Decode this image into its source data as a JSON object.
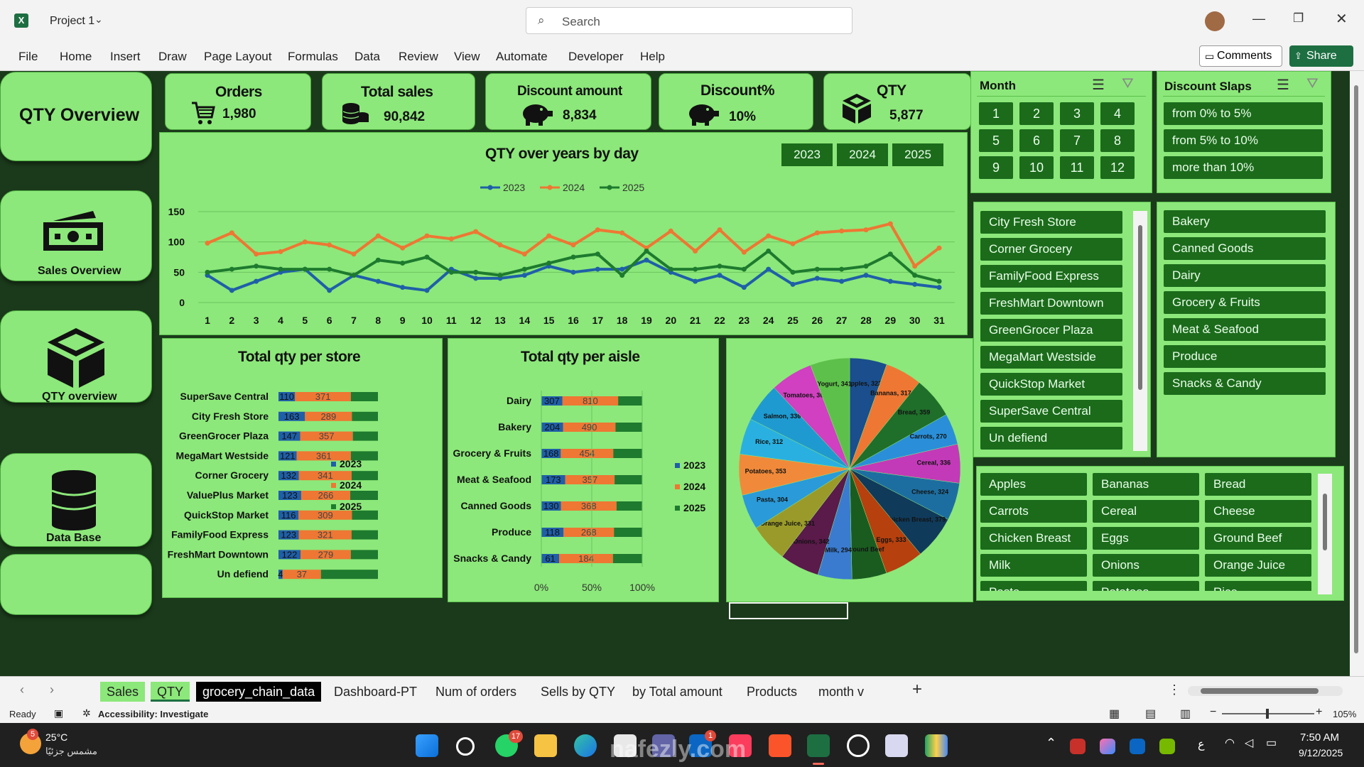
{
  "window": {
    "project_title": "Project 1",
    "search_placeholder": "Search",
    "comments_label": "Comments",
    "share_label": "Share"
  },
  "menu": [
    "File",
    "Home",
    "Insert",
    "Draw",
    "Page Layout",
    "Formulas",
    "Data",
    "Review",
    "View",
    "Automate",
    "Developer",
    "Help"
  ],
  "nav": {
    "qty_overview_title": "QTY Overview",
    "sales_overview": "Sales Overview",
    "qty_overview": "QTY overview",
    "data_base": "Data Base"
  },
  "kpis": [
    {
      "title": "Orders",
      "value": "1,980",
      "icon": "cart-icon"
    },
    {
      "title": "Total sales",
      "value": "90,842",
      "icon": "coins-icon"
    },
    {
      "title": "Discount amount",
      "value": "8,834",
      "icon": "piggy-bank-icon"
    },
    {
      "title": "Discount%",
      "value": "10%",
      "icon": "piggy-bank-icon"
    },
    {
      "title": "QTY",
      "value": "5,877",
      "icon": "box-icon"
    }
  ],
  "line_chart": {
    "title": "QTY over years by day",
    "year_buttons": [
      "2023",
      "2024",
      "2025"
    ],
    "colors": {
      "2023": "#1f5fa8",
      "2024": "#ee7733",
      "2025": "#1e7a2e"
    }
  },
  "chart_data": [
    {
      "type": "line",
      "title": "QTY over years by day",
      "x": [
        1,
        2,
        3,
        4,
        5,
        6,
        7,
        8,
        9,
        10,
        11,
        12,
        13,
        14,
        15,
        16,
        17,
        18,
        19,
        20,
        21,
        22,
        23,
        24,
        25,
        26,
        27,
        28,
        29,
        30,
        31
      ],
      "ylim": [
        0,
        150
      ],
      "yticks": [
        0,
        50,
        100,
        150
      ],
      "legend": "top",
      "series": [
        {
          "name": "2023",
          "values": [
            45,
            20,
            35,
            50,
            55,
            20,
            45,
            35,
            25,
            20,
            55,
            40,
            40,
            45,
            60,
            50,
            55,
            55,
            70,
            50,
            35,
            45,
            25,
            55,
            30,
            40,
            35,
            45,
            35,
            30,
            25
          ]
        },
        {
          "name": "2024",
          "values": [
            98,
            115,
            80,
            84,
            100,
            95,
            80,
            110,
            90,
            110,
            105,
            117,
            95,
            80,
            110,
            95,
            120,
            115,
            90,
            118,
            85,
            120,
            83,
            110,
            97,
            115,
            118,
            120,
            130,
            60,
            90
          ]
        },
        {
          "name": "2025",
          "values": [
            50,
            55,
            60,
            55,
            55,
            55,
            45,
            70,
            65,
            75,
            50,
            50,
            45,
            55,
            65,
            75,
            80,
            45,
            85,
            55,
            55,
            60,
            55,
            85,
            50,
            55,
            55,
            60,
            80,
            45,
            35
          ]
        }
      ]
    },
    {
      "type": "bar",
      "title": "Total qty per store",
      "categories": [
        "SuperSave Central",
        "City Fresh Store",
        "GreenGrocer Plaza",
        "MegaMart Westside",
        "Corner Grocery",
        "ValuePlus Market",
        "QuickStop Market",
        "FamilyFood Express",
        "FreshMart Downtown",
        "Un defiend"
      ],
      "stacked": "100%",
      "legend": "right",
      "series": [
        {
          "name": "2023",
          "values": [
            110,
            163,
            147,
            121,
            132,
            123,
            116,
            123,
            122,
            4
          ]
        },
        {
          "name": "2024",
          "values": [
            371,
            289,
            357,
            361,
            341,
            266,
            309,
            321,
            279,
            37
          ]
        },
        {
          "name": "2025",
          "values": [
            180,
            160,
            170,
            180,
            170,
            150,
            150,
            160,
            150,
            55
          ]
        }
      ]
    },
    {
      "type": "bar",
      "title": "Total qty per aisle",
      "categories": [
        "Dairy",
        "Bakery",
        "Grocery & Fruits",
        "Meat & Seafood",
        "Canned Goods",
        "Produce",
        "Snacks & Candy"
      ],
      "stacked": "100%",
      "xticks": [
        "0%",
        "50%",
        "100%"
      ],
      "legend": "right",
      "series": [
        {
          "name": "2023",
          "values": [
            307,
            204,
            168,
            173,
            130,
            118,
            61
          ]
        },
        {
          "name": "2024",
          "values": [
            810,
            490,
            454,
            357,
            368,
            268,
            184
          ]
        },
        {
          "name": "2025",
          "values": [
            350,
            250,
            250,
            200,
            170,
            150,
            100
          ]
        }
      ]
    },
    {
      "type": "pie",
      "categories": [
        "Apples",
        "Bananas",
        "Bread",
        "Carrots",
        "Cereal",
        "Cheese",
        "Chicken Breast",
        "Eggs",
        "Ground Beef",
        "Milk",
        "Onions",
        "Orange Juice",
        "Pasta",
        "Potatoes",
        "Rice",
        "Salmon",
        "Tomatoes",
        "Yogurt"
      ],
      "values": [
        322,
        317,
        359,
        270,
        336,
        324,
        379,
        333,
        300,
        294,
        342,
        331,
        304,
        353,
        312,
        336,
        366,
        341
      ],
      "labels": [
        "Apples, 322",
        "Bananas, 317",
        "Bread, 359",
        "Carrots, 270",
        "Cereal, 336",
        "Cheese, 324",
        "Chicken Breast, 379",
        "Eggs, 333",
        "Ground Beef",
        "Milk, 294",
        "Onions, 342",
        "Orange Juice, 331",
        "Pasta, 304",
        "Potatoes, 353",
        "Rice, 312",
        "Salmon, 336",
        "Tomatoes, 366",
        "Yogurt, 341"
      ],
      "colors": [
        "#1a4e8c",
        "#ee7733",
        "#1f6e2a",
        "#2a8fd8",
        "#c23ab8",
        "#1d6ea0",
        "#103a5a",
        "#b6400e",
        "#1a5c20",
        "#3a7bd0",
        "#5a1a4a",
        "#9a9a2a",
        "#2a9ad8",
        "#f08a3a",
        "#2ab0e0",
        "#1f9ad0",
        "#d040c0",
        "#5dc04a"
      ]
    }
  ],
  "slicers": {
    "month": {
      "title": "Month",
      "items": [
        "1",
        "2",
        "3",
        "4",
        "5",
        "6",
        "7",
        "8",
        "9",
        "10",
        "11",
        "12"
      ]
    },
    "discount": {
      "title": "Discount Slaps",
      "items": [
        "from 0% to 5%",
        "from 5% to 10%",
        "more than 10%"
      ]
    },
    "stores": [
      "City Fresh Store",
      "Corner Grocery",
      "FamilyFood Express",
      "FreshMart Downtown",
      "GreenGrocer Plaza",
      "MegaMart Westside",
      "QuickStop Market",
      "SuperSave Central",
      "Un defiend"
    ],
    "aisles": [
      "Bakery",
      "Canned Goods",
      "Dairy",
      "Grocery & Fruits",
      "Meat & Seafood",
      "Produce",
      "Snacks & Candy"
    ],
    "products": [
      "Apples",
      "Bananas",
      "Bread",
      "Carrots",
      "Cereal",
      "Cheese",
      "Chicken Breast",
      "Eggs",
      "Ground Beef",
      "Milk",
      "Onions",
      "Orange Juice",
      "Pasta",
      "Potatoes",
      "Rice"
    ]
  },
  "sheet_tabs": [
    "Sales",
    "QTY",
    "grocery_chain_data",
    "Dashboard-PT",
    "Num of orders",
    "Sells by QTY",
    "by Total amount",
    "Products",
    "month v"
  ],
  "status": {
    "ready": "Ready",
    "accessibility": "Accessibility: Investigate",
    "zoom": "105%"
  },
  "taskbar": {
    "weather_temp": "25°C",
    "weather_desc": "مشمس جزئيًا",
    "weather_badge": "5",
    "time": "7:50 AM",
    "date": "9/12/2025",
    "whatsapp_badge": "17",
    "linkedin_badge": "1",
    "lang": "ع"
  },
  "watermark": "nafezly.com"
}
